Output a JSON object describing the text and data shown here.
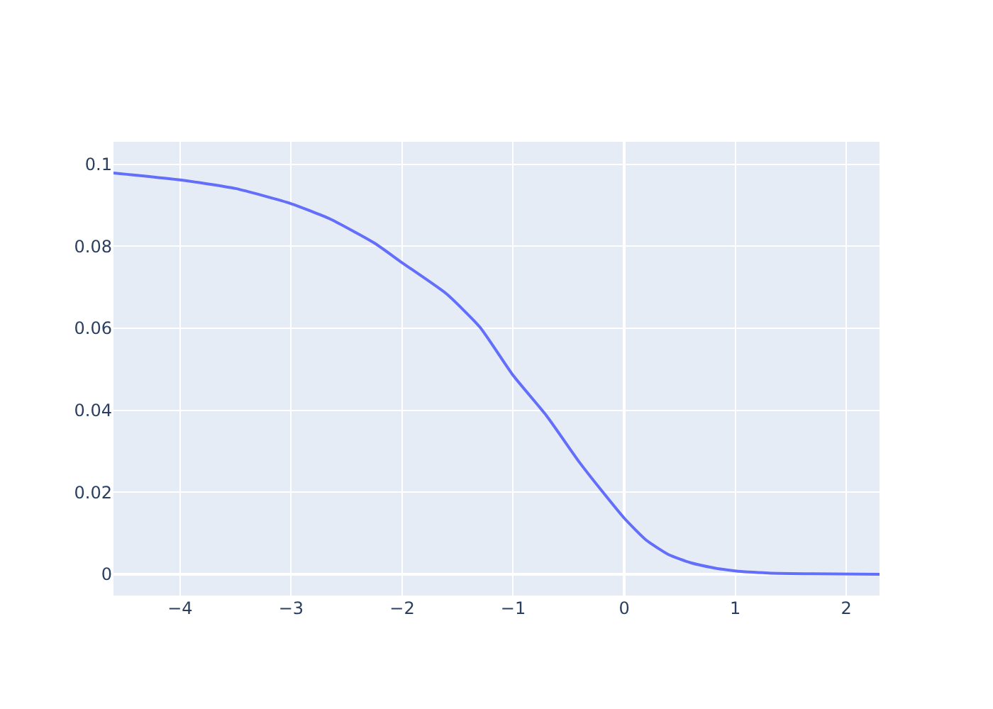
{
  "chart_data": {
    "type": "line",
    "x": [
      -4.6,
      -4,
      -3.5,
      -3,
      -2.65,
      -2.25,
      -2,
      -1.6,
      -1.3,
      -1,
      -0.7,
      -0.4,
      -0.2,
      0,
      0.2,
      0.4,
      0.6,
      0.8,
      1,
      1.3,
      1.7,
      2.3
    ],
    "series": [
      {
        "color": "#636efa",
        "values": [
          0.0979,
          0.0962,
          0.0941,
          0.0904,
          0.0867,
          0.0808,
          0.076,
          0.0684,
          0.0603,
          0.0485,
          0.0387,
          0.0272,
          0.0203,
          0.0137,
          0.0083,
          0.0048,
          0.0028,
          0.0016,
          0.0008,
          0.0003,
          0.0001,
          0
        ]
      }
    ],
    "xlim": [
      -4.6,
      2.3
    ],
    "xticks": [
      {
        "value": -4,
        "label": "−4"
      },
      {
        "value": -3,
        "label": "−3"
      },
      {
        "value": -2,
        "label": "−2"
      },
      {
        "value": -1,
        "label": "−1"
      },
      0,
      1,
      2
    ],
    "ylim": [
      -0.0052,
      0.1055
    ],
    "yticks": [
      0,
      0.02,
      0.04,
      0.06,
      0.08,
      0.1
    ],
    "grid": true,
    "legend": false,
    "marker": "none",
    "line_style": "solid"
  }
}
